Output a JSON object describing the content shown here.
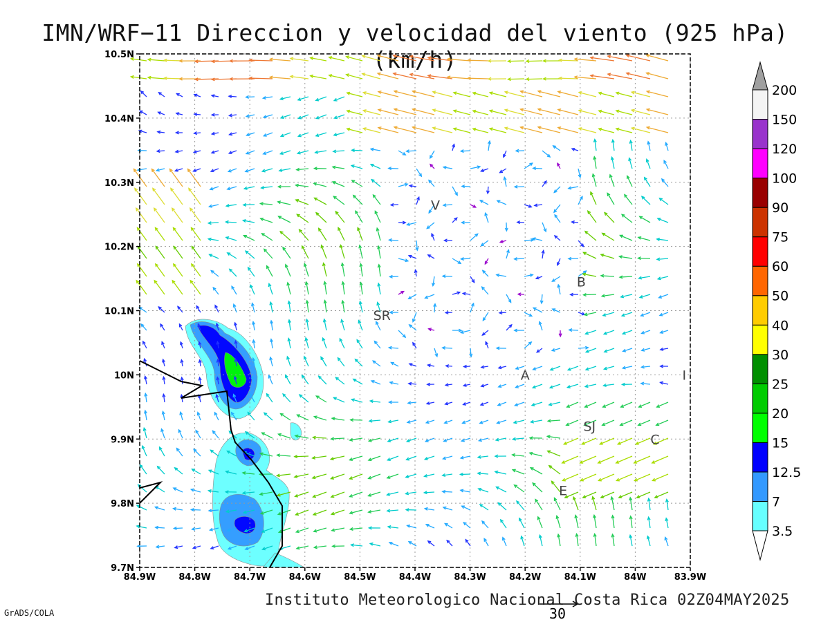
{
  "title": "IMN/WRF−11 Direccion y velocidad del viento (925 hPa)(km/h)",
  "footer": "Instituto Meteorologico Nacional Costa Rica 02Z04MAY2025",
  "credit": "GrADS/COLA",
  "reference_vector": {
    "label": "30",
    "value": 30
  },
  "map": {
    "lon_range": [
      -84.9,
      -83.9
    ],
    "lat_range": [
      9.7,
      10.5
    ],
    "grid": "dotted",
    "x_ticks": [
      {
        "v": -84.9,
        "label": "84.9W"
      },
      {
        "v": -84.8,
        "label": "84.8W"
      },
      {
        "v": -84.7,
        "label": "84.7W"
      },
      {
        "v": -84.6,
        "label": "84.6W"
      },
      {
        "v": -84.5,
        "label": "84.5W"
      },
      {
        "v": -84.4,
        "label": "84.4W"
      },
      {
        "v": -84.3,
        "label": "84.3W"
      },
      {
        "v": -84.2,
        "label": "84.2W"
      },
      {
        "v": -84.1,
        "label": "84.1W"
      },
      {
        "v": -84.0,
        "label": "84W"
      },
      {
        "v": -83.9,
        "label": "83.9W"
      }
    ],
    "y_ticks": [
      {
        "v": 9.7,
        "label": "9.7N"
      },
      {
        "v": 9.8,
        "label": "9.8N"
      },
      {
        "v": 9.9,
        "label": "9.9N"
      },
      {
        "v": 10.0,
        "label": "10N"
      },
      {
        "v": 10.1,
        "label": "10.1N"
      },
      {
        "v": 10.2,
        "label": "10.2N"
      },
      {
        "v": 10.3,
        "label": "10.3N"
      },
      {
        "v": 10.4,
        "label": "10.4N"
      },
      {
        "v": 10.5,
        "label": "10.5N"
      }
    ],
    "place_labels": [
      {
        "text": "V",
        "lon": -84.363,
        "lat": 10.265
      },
      {
        "text": "B",
        "lon": -84.098,
        "lat": 10.145
      },
      {
        "text": "SR",
        "lon": -84.46,
        "lat": 10.093
      },
      {
        "text": "A",
        "lon": -84.2,
        "lat": 10.0
      },
      {
        "text": "I",
        "lon": -83.911,
        "lat": 10.0
      },
      {
        "text": "SJ",
        "lon": -84.083,
        "lat": 9.92
      },
      {
        "text": "C",
        "lon": -83.964,
        "lat": 9.9
      },
      {
        "text": "E",
        "lon": -84.131,
        "lat": 9.82
      }
    ]
  },
  "colorbar": {
    "levels": [
      {
        "label": "3.5",
        "color": "#66ffff"
      },
      {
        "label": "7",
        "color": "#3399ff"
      },
      {
        "label": "12.5",
        "color": "#0000ff"
      },
      {
        "label": "15",
        "color": "#00ff00"
      },
      {
        "label": "20",
        "color": "#00cc00"
      },
      {
        "label": "25",
        "color": "#008f00"
      },
      {
        "label": "30",
        "color": "#ffff00"
      },
      {
        "label": "40",
        "color": "#ffcc00"
      },
      {
        "label": "50",
        "color": "#ff6600"
      },
      {
        "label": "60",
        "color": "#ff0000"
      },
      {
        "label": "75",
        "color": "#cc3300"
      },
      {
        "label": "90",
        "color": "#990000"
      },
      {
        "label": "100",
        "color": "#ff00ff"
      },
      {
        "label": "120",
        "color": "#9933cc"
      },
      {
        "label": "150",
        "color": "#f4f4f4"
      },
      {
        "label": "200",
        "color": "#a0a0a0"
      }
    ]
  }
}
